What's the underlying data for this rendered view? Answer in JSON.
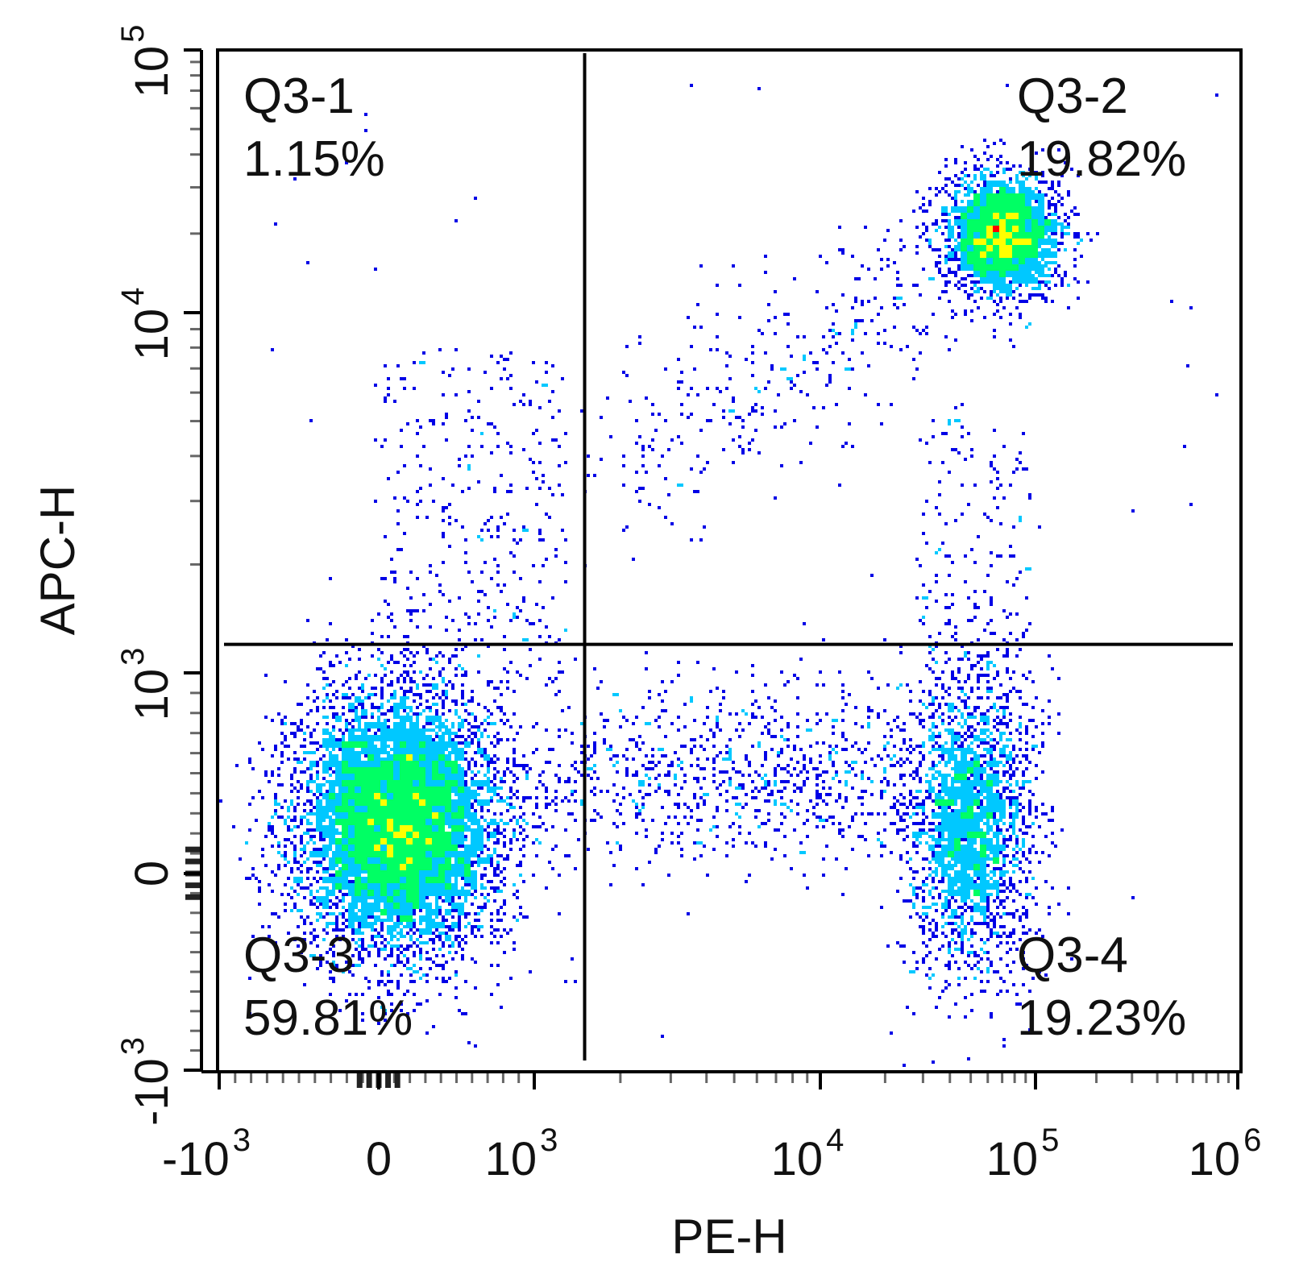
{
  "chart_data": {
    "type": "scatter",
    "style": "density-pseudocolor",
    "xlabel": "PE-H",
    "ylabel": "APC-H",
    "x_scale": "biexponential",
    "y_scale": "biexponential",
    "xlim": [
      -1000,
      1000000
    ],
    "ylim": [
      -1000,
      100000
    ],
    "x_ticks": [
      {
        "base": "-10",
        "exp": "3",
        "value": -1000
      },
      {
        "base": "0",
        "exp": "",
        "value": 0
      },
      {
        "base": "10",
        "exp": "3",
        "value": 1000
      },
      {
        "base": "10",
        "exp": "4",
        "value": 10000
      },
      {
        "base": "10",
        "exp": "5",
        "value": 100000
      },
      {
        "base": "10",
        "exp": "6",
        "value": 1000000
      }
    ],
    "y_ticks": [
      {
        "base": "-10",
        "exp": "3",
        "value": -1000
      },
      {
        "base": "0",
        "exp": "",
        "value": 0
      },
      {
        "base": "10",
        "exp": "3",
        "value": 1000
      },
      {
        "base": "10",
        "exp": "4",
        "value": 10000
      },
      {
        "base": "10",
        "exp": "5",
        "value": 100000
      }
    ],
    "gates": {
      "x": 1500,
      "y": 1200
    },
    "quadrants": [
      {
        "name": "Q3-1",
        "percent": "1.15%",
        "position": "top-left"
      },
      {
        "name": "Q3-2",
        "percent": "19.82%",
        "position": "top-right"
      },
      {
        "name": "Q3-3",
        "percent": "59.81%",
        "position": "bottom-left"
      },
      {
        "name": "Q3-4",
        "percent": "19.23%",
        "position": "bottom-right"
      }
    ],
    "populations": [
      {
        "x": 120,
        "y": 250,
        "weight": 0.6
      },
      {
        "x": 50000,
        "y": 260,
        "weight": 0.19
      },
      {
        "x": 70000,
        "y": 20000,
        "weight": 0.2
      },
      {
        "x": 3500,
        "y": 3500,
        "weight": 0.012
      }
    ],
    "density_colors": [
      "#0000e6",
      "#00c8ff",
      "#00ff64",
      "#ffff00",
      "#ff0000"
    ],
    "grid": false,
    "legend": "none"
  }
}
